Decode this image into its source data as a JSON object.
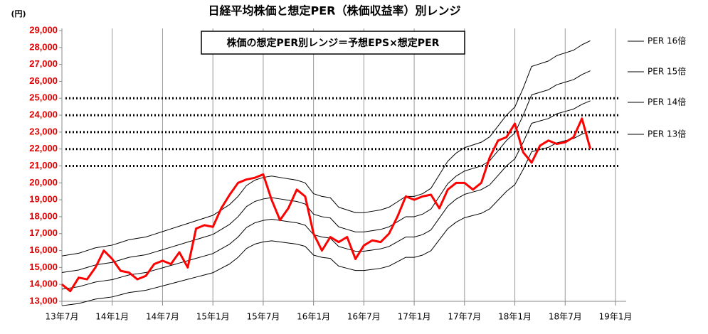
{
  "chart_data": {
    "type": "line",
    "title": "日経平均株価と想定PER（株価収益率）別レンジ",
    "y_unit": "(円)",
    "annotation": "株価の想定PER別レンジ＝予想EPS×想定PER",
    "categories": [
      "13年7月",
      null,
      null,
      null,
      null,
      null,
      "14年1月",
      null,
      null,
      null,
      null,
      null,
      "14年7月",
      null,
      null,
      null,
      null,
      null,
      "15年1月",
      null,
      null,
      null,
      null,
      null,
      "15年7月",
      null,
      null,
      null,
      null,
      null,
      "16年1月",
      null,
      null,
      null,
      null,
      null,
      "16年7月",
      null,
      null,
      null,
      null,
      null,
      "17年1月",
      null,
      null,
      null,
      null,
      null,
      "17年7月",
      null,
      null,
      null,
      null,
      null,
      "18年1月",
      null,
      null,
      null,
      null,
      null,
      "18年7月",
      null,
      null,
      null,
      null,
      null,
      "19年1月"
    ],
    "series": [
      {
        "name": "PER 16倍",
        "color": "#000000",
        "width": 1,
        "values": [
          15680,
          15760,
          15840,
          16000,
          16160,
          16240,
          16320,
          16480,
          16640,
          16720,
          16800,
          16960,
          17120,
          17280,
          17440,
          17600,
          17760,
          17920,
          18080,
          18400,
          18720,
          19200,
          19840,
          20160,
          20320,
          20400,
          20320,
          20240,
          20160,
          20000,
          19360,
          19200,
          19120,
          18560,
          18400,
          18240,
          18240,
          18320,
          18400,
          18560,
          18880,
          19200,
          19200,
          19360,
          19680,
          20480,
          21280,
          21760,
          22080,
          22240,
          22400,
          22720,
          23360,
          24000,
          24480,
          25600,
          26880,
          27040,
          27200,
          27520,
          27680,
          27840,
          28160,
          28400,
          null,
          null,
          null
        ]
      },
      {
        "name": "PER 15倍",
        "color": "#000000",
        "width": 1,
        "values": [
          14700,
          14775,
          14850,
          15000,
          15150,
          15225,
          15300,
          15450,
          15600,
          15675,
          15750,
          15900,
          16050,
          16200,
          16350,
          16500,
          16650,
          16800,
          16950,
          17250,
          17550,
          18000,
          18600,
          18900,
          19050,
          19125,
          19050,
          18975,
          18900,
          18750,
          18150,
          18000,
          17925,
          17400,
          17250,
          17100,
          17100,
          17175,
          17250,
          17400,
          17700,
          18000,
          18000,
          18150,
          18450,
          19200,
          19950,
          20400,
          20700,
          20850,
          21000,
          21300,
          21900,
          22500,
          22950,
          24000,
          25200,
          25350,
          25500,
          25800,
          25950,
          26100,
          26400,
          26625,
          null,
          null,
          null
        ]
      },
      {
        "name": "PER 14倍",
        "color": "#000000",
        "width": 1,
        "values": [
          13720,
          13790,
          13860,
          14000,
          14140,
          14210,
          14280,
          14420,
          14560,
          14630,
          14700,
          14840,
          14980,
          15120,
          15260,
          15400,
          15540,
          15680,
          15820,
          16100,
          16380,
          16800,
          17360,
          17640,
          17780,
          17850,
          17780,
          17710,
          17640,
          17500,
          16940,
          16800,
          16730,
          16240,
          16100,
          15960,
          15960,
          16030,
          16100,
          16240,
          16520,
          16800,
          16800,
          16940,
          17220,
          17920,
          18620,
          19040,
          19320,
          19460,
          19600,
          19880,
          20440,
          21000,
          21420,
          22400,
          23520,
          23660,
          23800,
          24080,
          24220,
          24360,
          24640,
          24850,
          null,
          null,
          null
        ]
      },
      {
        "name": "PER 13倍",
        "color": "#000000",
        "width": 1,
        "values": [
          12740,
          12805,
          12870,
          13000,
          13130,
          13195,
          13260,
          13390,
          13520,
          13585,
          13650,
          13780,
          13910,
          14040,
          14170,
          14300,
          14430,
          14560,
          14690,
          14950,
          15210,
          15600,
          16120,
          16380,
          16510,
          16575,
          16510,
          16445,
          16380,
          16250,
          15730,
          15600,
          15535,
          15080,
          14950,
          14820,
          14820,
          14885,
          14950,
          15080,
          15340,
          15600,
          15600,
          15730,
          15990,
          16640,
          17290,
          17680,
          17940,
          18070,
          18200,
          18460,
          18980,
          19500,
          19890,
          20800,
          21840,
          21970,
          22100,
          22360,
          22490,
          22620,
          22880,
          23075,
          null,
          null,
          null
        ]
      },
      {
        "color": "#ff0000",
        "width": 3,
        "values": [
          14000,
          13600,
          14400,
          14300,
          15000,
          16000,
          15500,
          14800,
          14700,
          14300,
          14500,
          15200,
          15400,
          15200,
          15900,
          15000,
          17300,
          17500,
          17400,
          18500,
          19300,
          20000,
          20200,
          20300,
          20500,
          19000,
          17800,
          18500,
          19600,
          19200,
          17000,
          16000,
          16800,
          16500,
          16800,
          15500,
          16300,
          16600,
          16500,
          17000,
          18000,
          19200,
          19000,
          19200,
          19300,
          18500,
          19600,
          20000,
          20000,
          19600,
          20000,
          21500,
          22500,
          22700,
          23500,
          21800,
          21200,
          22200,
          22500,
          22300,
          22400,
          22700,
          23800,
          22000,
          null,
          null,
          null
        ]
      }
    ],
    "reference_lines": [
      21000,
      22000,
      23000,
      24000,
      25000
    ],
    "ylim": [
      13000,
      29000
    ],
    "yticks": [
      {
        "value": 13000,
        "label": "13,000"
      },
      {
        "value": 14000,
        "label": "14,000"
      },
      {
        "value": 15000,
        "label": "15,000"
      },
      {
        "value": 16000,
        "label": "16,000"
      },
      {
        "value": 17000,
        "label": "17,000"
      },
      {
        "value": 18000,
        "label": "18,000"
      },
      {
        "value": 19000,
        "label": "19,000"
      },
      {
        "value": 20000,
        "label": "20,000"
      },
      {
        "value": 21000,
        "label": "21,000"
      },
      {
        "value": 22000,
        "label": "22,000"
      },
      {
        "value": 23000,
        "label": "23,000"
      },
      {
        "value": 24000,
        "label": "24,000"
      },
      {
        "value": 25000,
        "label": "25,000"
      },
      {
        "value": 26000,
        "label": "26,000"
      },
      {
        "value": 27000,
        "label": "27,000"
      },
      {
        "value": 28000,
        "label": "28,000"
      },
      {
        "value": 29000,
        "label": "29,000"
      }
    ],
    "grid": true
  }
}
